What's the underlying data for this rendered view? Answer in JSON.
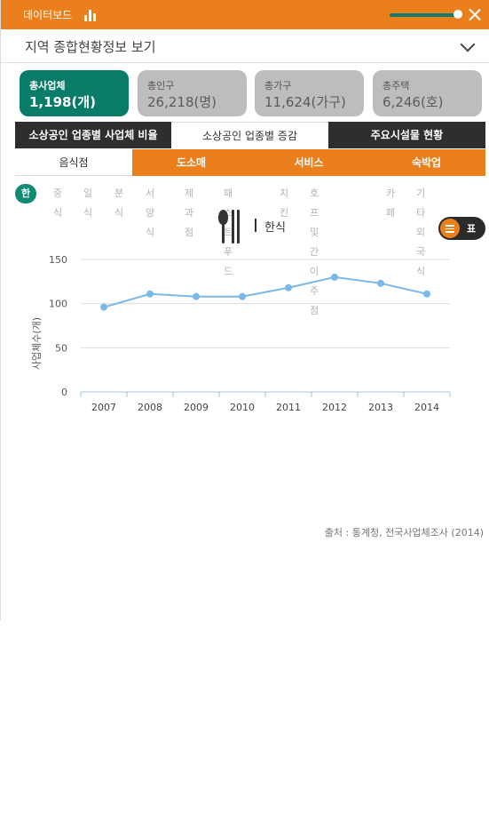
{
  "topbar": {
    "title": "데이터보드",
    "chart_icon": "bar-chart-icon",
    "close_icon": "close-icon",
    "slider_level": 0.95
  },
  "region": {
    "title": "지역 종합현황정보 보기"
  },
  "cards": [
    {
      "label": "총사업체",
      "value": "1,198(개)",
      "active": true
    },
    {
      "label": "총인구",
      "value": "26,218(명)",
      "active": false
    },
    {
      "label": "총가구",
      "value": "11,624(가구)",
      "active": false
    },
    {
      "label": "총주택",
      "value": "6,246(호)",
      "active": false
    }
  ],
  "main_tabs": [
    "소상공인 업종별 사업체 비율",
    "소상공인 업종별 증감",
    "주요시설물 현황"
  ],
  "sub_tabs": [
    "음식점",
    "도소매",
    "서비스",
    "숙박업"
  ],
  "categories": [
    "한식",
    "중식",
    "일식",
    "분식",
    "서양식",
    "제과점",
    "패스트푸드",
    "치킨",
    "호프 및 간이주점",
    "카페",
    "기타 외국식"
  ],
  "chart_header": {
    "title": "한식",
    "icon": "spoon-chopsticks-icon"
  },
  "view_toggle": {
    "icon": "list-icon",
    "label": "표"
  },
  "chart_data": {
    "type": "line",
    "x": [
      "2007",
      "2008",
      "2009",
      "2010",
      "2011",
      "2012",
      "2013",
      "2014"
    ],
    "series": [
      {
        "values": [
          96,
          111,
          108,
          108,
          118,
          130,
          123,
          111
        ]
      }
    ],
    "ylabel": "사업체수(개)",
    "ylim": [
      0,
      150
    ],
    "yticks": [
      0,
      50,
      100,
      150
    ],
    "grid": true,
    "color": "#7ab8e8"
  },
  "source": "출처 : 통계청, 전국사업체조사 (2014)"
}
